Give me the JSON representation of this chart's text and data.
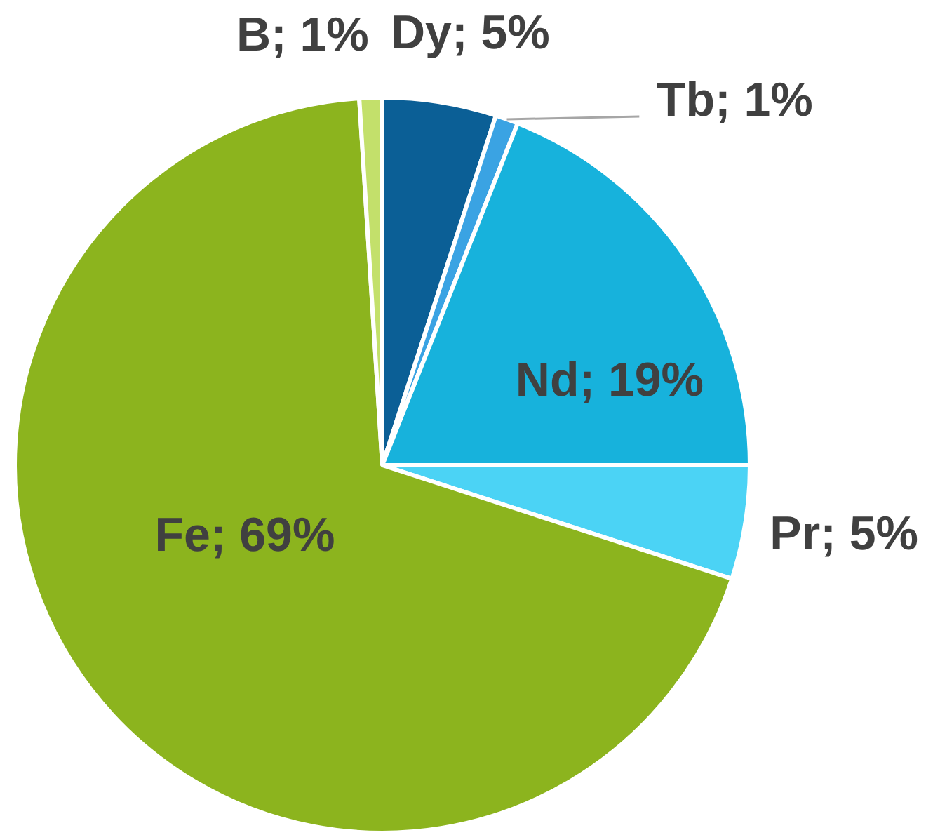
{
  "chart_data": {
    "type": "pie",
    "categories": [
      "Dy",
      "Tb",
      "Nd",
      "Pr",
      "Fe",
      "B"
    ],
    "values": [
      5,
      1,
      19,
      5,
      69,
      1
    ],
    "colors": [
      "#0b5f96",
      "#3aa3e3",
      "#17b2dc",
      "#4bd3f5",
      "#8cb41e",
      "#c3e06b"
    ],
    "value_labels": [
      "5%",
      "1%",
      "19%",
      "5%",
      "69%",
      "1%"
    ]
  }
}
